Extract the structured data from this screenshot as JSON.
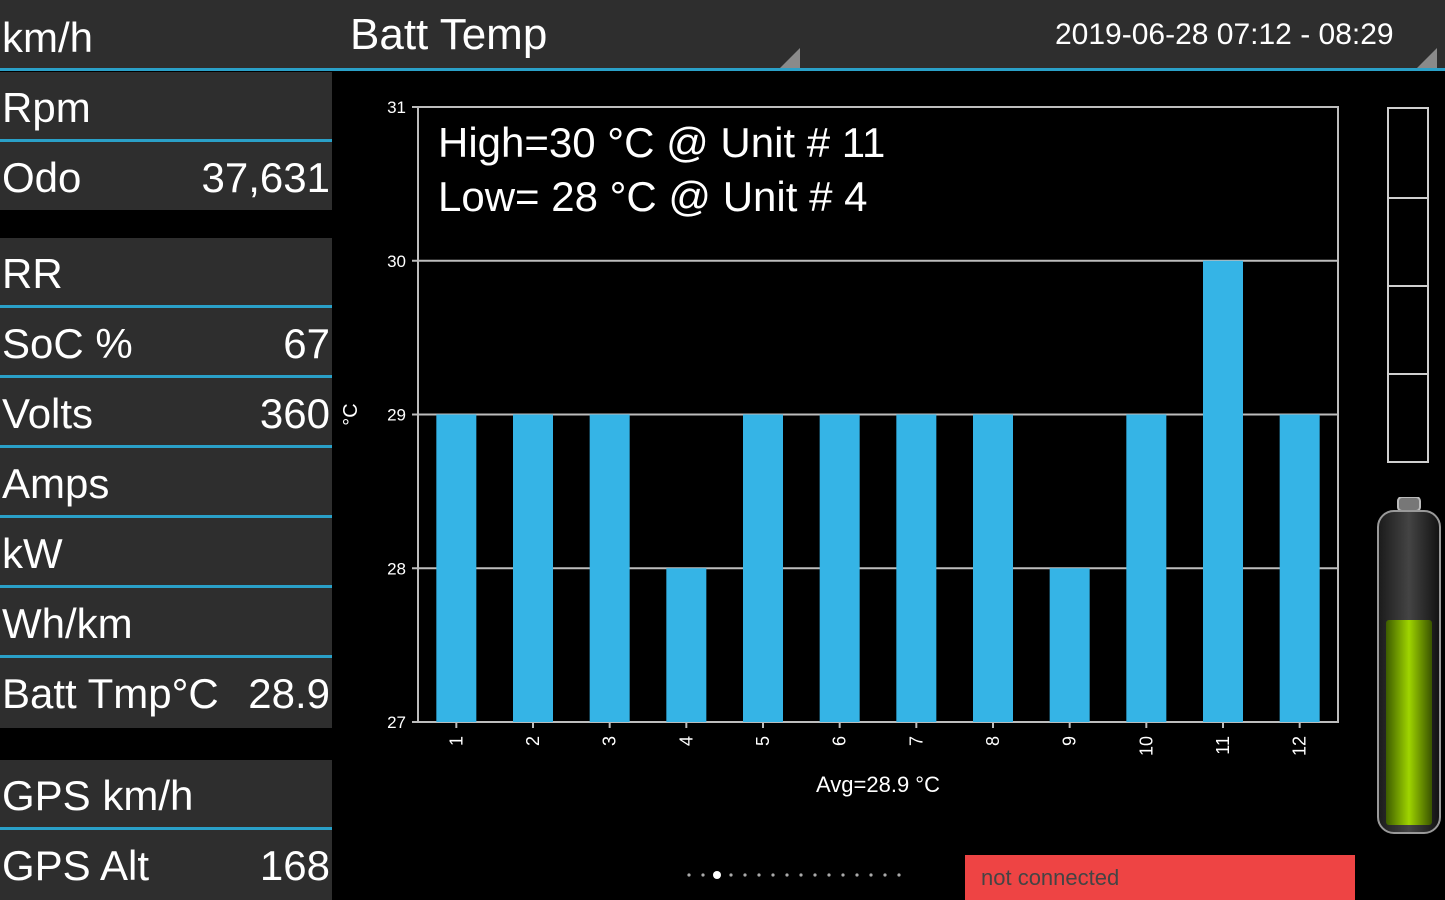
{
  "header": {
    "speed_label": "km/h",
    "title": "Batt Temp",
    "date_range": "2019-06-28 07:12 - 08:29"
  },
  "left_panel": {
    "rpm": {
      "label": "Rpm",
      "value": ""
    },
    "odo": {
      "label": "Odo",
      "value": "37,631"
    },
    "rr": {
      "label": "RR",
      "value": ""
    },
    "soc": {
      "label": "SoC %",
      "value": "67"
    },
    "volts": {
      "label": "Volts",
      "value": "360"
    },
    "amps": {
      "label": "Amps",
      "value": ""
    },
    "kw": {
      "label": "kW",
      "value": ""
    },
    "whkm": {
      "label": "Wh/km",
      "value": ""
    },
    "batt_tmp": {
      "label": "Batt Tmp°C",
      "value": "28.9"
    },
    "gps_speed": {
      "label": "GPS km/h",
      "value": ""
    },
    "gps_alt": {
      "label": "GPS Alt",
      "value": "168"
    }
  },
  "chart_data": {
    "type": "bar",
    "categories": [
      "1",
      "2",
      "3",
      "4",
      "5",
      "6",
      "7",
      "8",
      "9",
      "10",
      "11",
      "12"
    ],
    "values": [
      29,
      29,
      29,
      28,
      29,
      29,
      29,
      29,
      28,
      29,
      30,
      29
    ],
    "ylabel": "°C",
    "xlabel": "Avg=28.9 °C",
    "ylim": [
      27,
      31
    ],
    "yticks": [
      "27",
      "28",
      "29",
      "30",
      "31"
    ],
    "annotations": [
      "High=30 °C @ Unit # 11",
      "Low= 28 °C @ Unit # 4"
    ],
    "bar_color": "#35b4e6",
    "grid": true
  },
  "battery": {
    "level_percent": 67
  },
  "pager": {
    "page_count": 16,
    "active_index": 2
  },
  "status": {
    "text": "not connected",
    "color": "#ee4444"
  },
  "colors": {
    "accent": "#2aa0c8",
    "panel": "#2e2e2e"
  }
}
